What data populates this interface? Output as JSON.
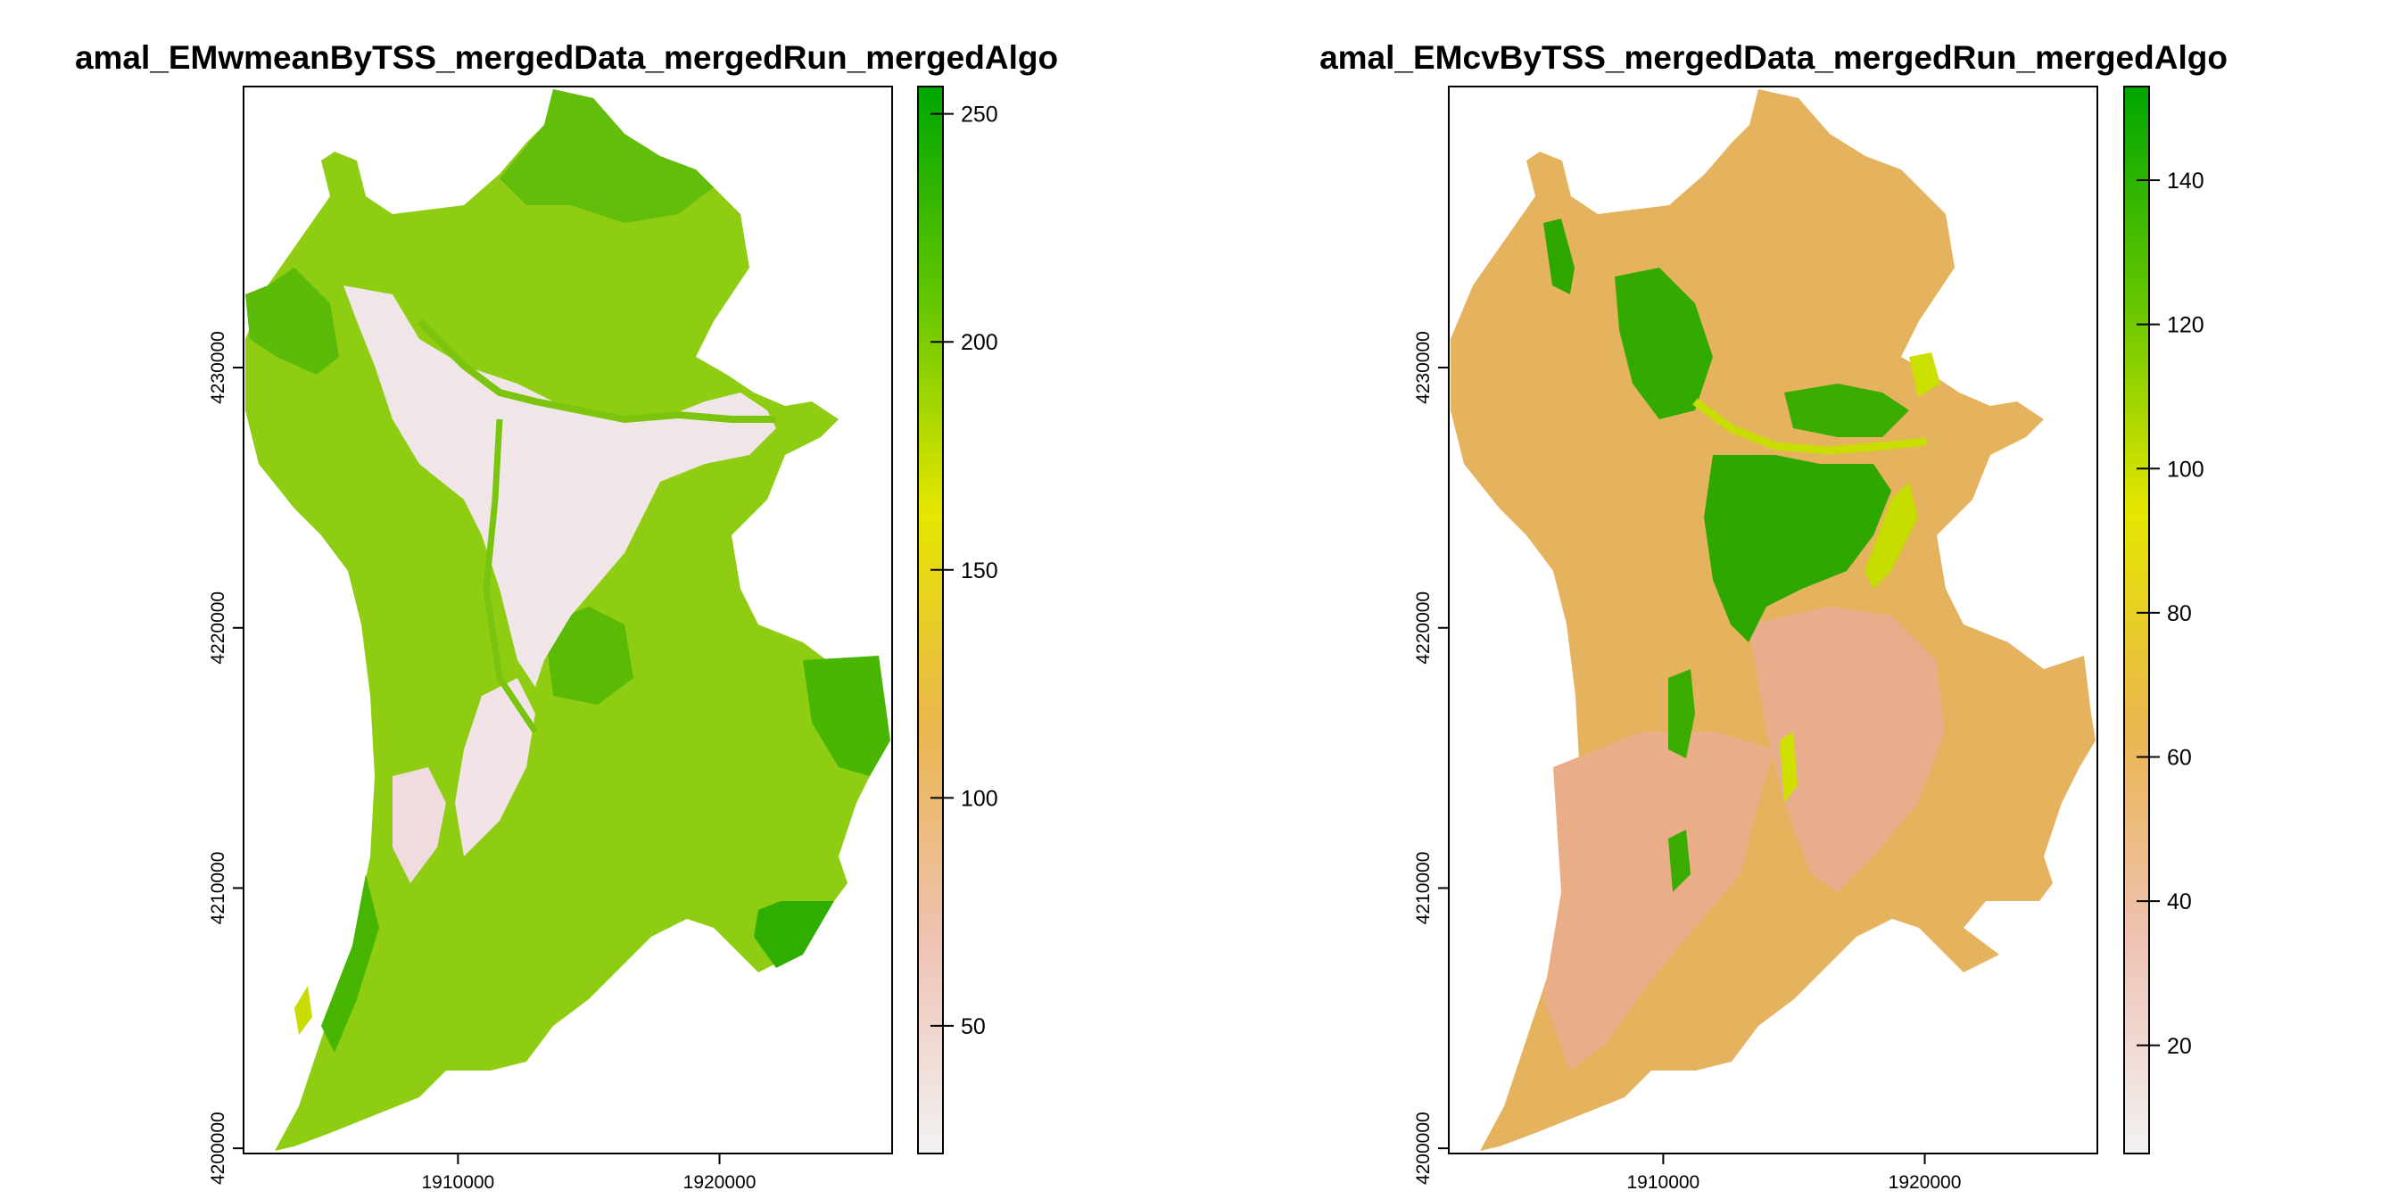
{
  "panels": [
    {
      "title": "amal_EMwmeanByTSS_mergedData_mergedRun_mergedAlgo",
      "x_ticks": [
        1910000,
        1920000
      ],
      "y_ticks": [
        4200000,
        4210000,
        4220000,
        4230000
      ],
      "xlim": [
        1901800,
        1926600
      ],
      "ylim": [
        4199800,
        4240800
      ],
      "legend": {
        "min": 22,
        "max": 256,
        "ticks": [
          50,
          100,
          150,
          200,
          250
        ]
      },
      "palette": "terrain-reversed",
      "urban_color": "#f5e9ea"
    },
    {
      "title": "amal_EMcvByTSS_mergedData_mergedRun_mergedAlgo",
      "x_ticks": [
        1910000,
        1920000
      ],
      "y_ticks": [
        4200000,
        4210000,
        4220000,
        4230000
      ],
      "xlim": [
        1901800,
        1926600
      ],
      "ylim": [
        4199800,
        4240800
      ],
      "legend": {
        "min": 5,
        "max": 153,
        "ticks": [
          20,
          40,
          60,
          80,
          100,
          120,
          140
        ]
      },
      "palette": "terrain-reversed",
      "urban_color": "#eab09a"
    }
  ],
  "colors": {
    "terrain": [
      "#f2f2f2",
      "#efc2b3",
      "#eab64e",
      "#e6e600",
      "#63c600",
      "#00a600"
    ],
    "map_green_light": "#9ed21c",
    "map_green_mid": "#7cc80f",
    "map_green_dark": "#39b100",
    "map_orange": "#e6b25a",
    "map_salmon": "#e8ad88",
    "cv_green": "#2ea800",
    "cv_yellow": "#c8de00"
  }
}
